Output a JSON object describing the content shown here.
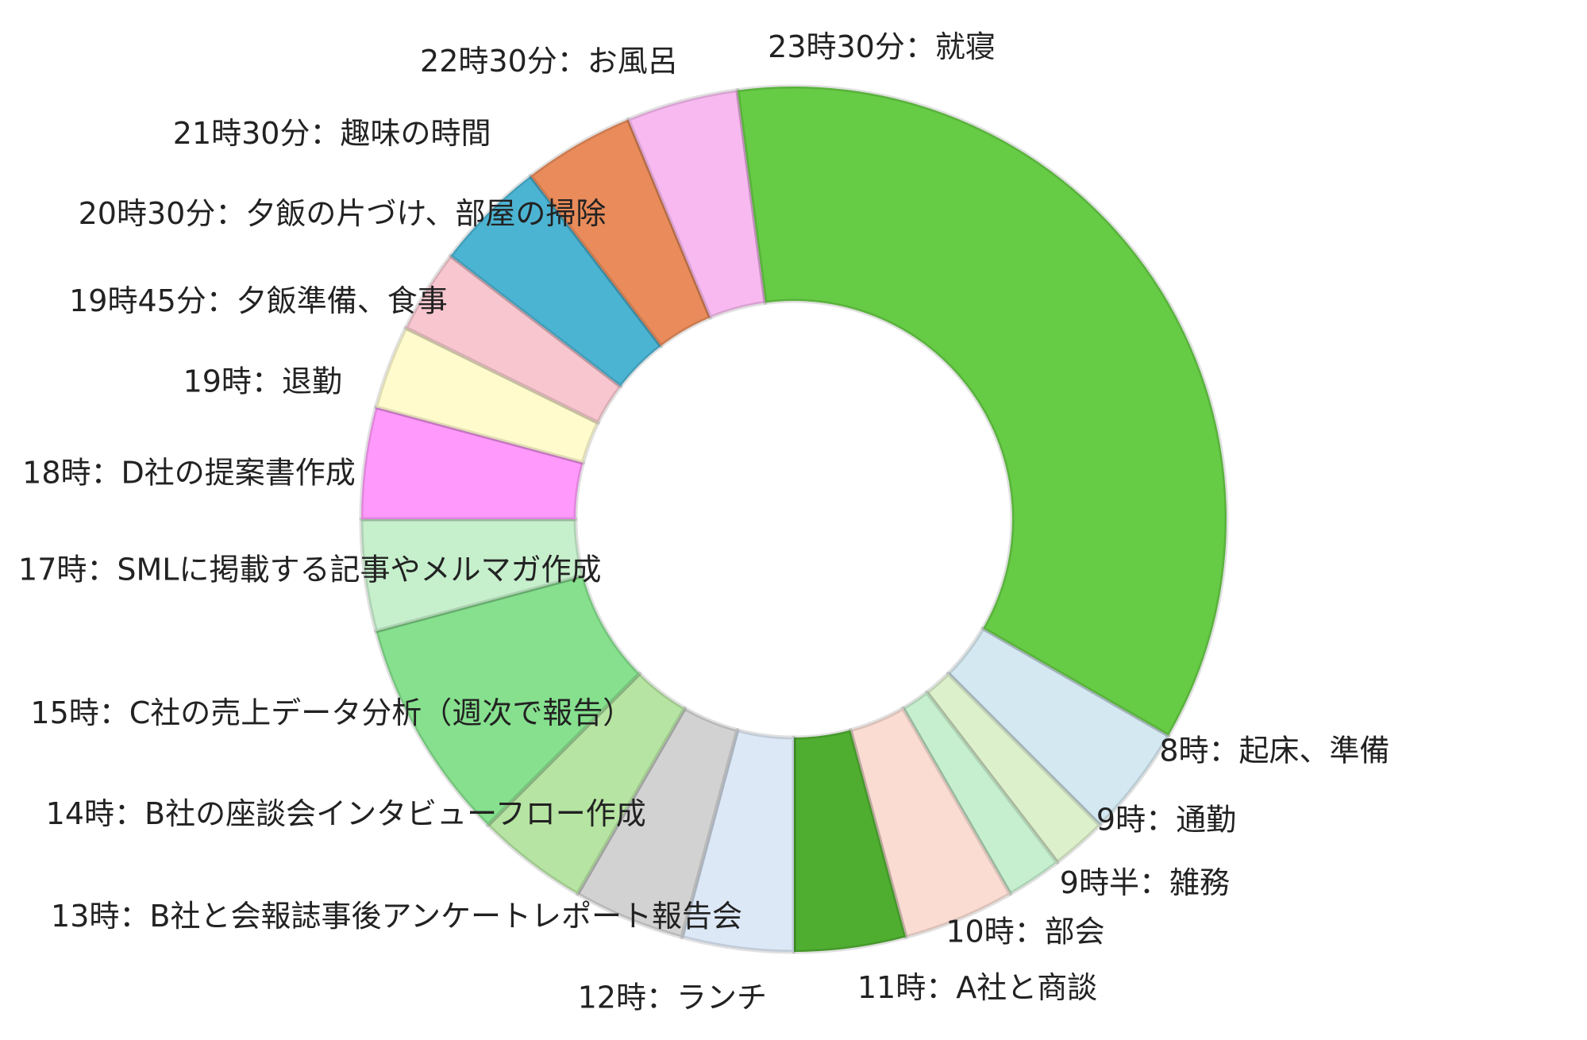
{
  "chart_data": {
    "type": "donut",
    "categories": [
      "8時：起床、準備",
      "9時：通勤",
      "9時半：雑務",
      "10時：部会",
      "11時：A社と商談",
      "12時：ランチ",
      "13時：B社と会報誌事後アンケートレポート報告会",
      "14時：B社の座談会インタビューフロー作成",
      "15時：C社の売上データ分析（週次で報告）",
      "17時：SMLに掲載する記事やメルマガ作成",
      "18時：D社の提案書作成",
      "19時：退勤",
      "19時45分：夕飯準備、食事",
      "20時30分：夕飯の片づけ、部屋の掃除",
      "21時30分：趣味の時間",
      "22時30分：お風呂",
      "23時30分：就寝"
    ],
    "values": [
      1,
      0.5,
      0.5,
      1,
      1,
      1,
      1,
      1,
      2,
      1,
      1,
      0.75,
      0.75,
      1,
      1,
      1,
      8.5
    ],
    "colors": [
      "#d3e8f1",
      "#ddf0cc",
      "#c6efcf",
      "#fadcd3",
      "#4fae30",
      "#dce8f6",
      "#d2d2d2",
      "#b6e4a2",
      "#86e08e",
      "#c6efcc",
      "#ff99fb",
      "#fffbcc",
      "#f8c6cf",
      "#4cb4d3",
      "#e98b5a",
      "#f8b9f0",
      "#66cb45"
    ]
  }
}
